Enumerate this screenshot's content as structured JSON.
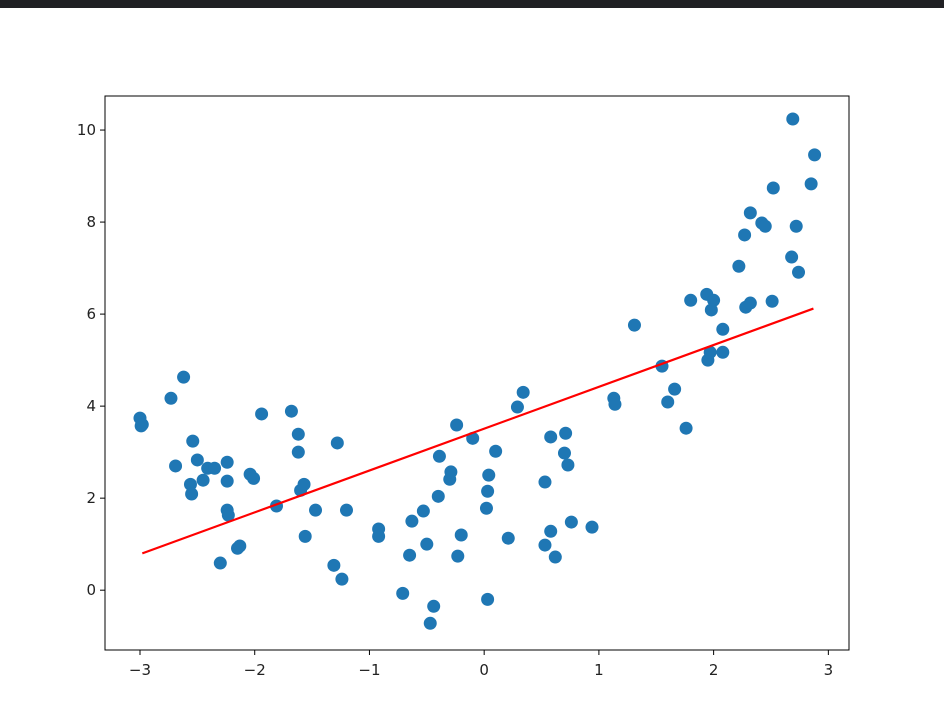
{
  "chart_data": {
    "type": "scatter",
    "xlim": [
      -3.305,
      3.18
    ],
    "ylim": [
      -1.3,
      10.74
    ],
    "xticks": [
      {
        "value": -3,
        "label": "−3"
      },
      {
        "value": -2,
        "label": "−2"
      },
      {
        "value": -1,
        "label": "−1"
      },
      0,
      1,
      2,
      3
    ],
    "yticks": [
      0,
      2,
      4,
      6,
      8,
      10
    ],
    "series": [
      {
        "type": "scatter",
        "color": "#1f77b4",
        "x": [
          -3.0,
          -2.99,
          -2.98,
          -2.73,
          -2.62,
          -2.69,
          -2.54,
          -2.56,
          -2.55,
          -2.5,
          -2.45,
          -2.41,
          -2.35,
          -2.3,
          -2.24,
          -2.24,
          -2.24,
          -2.23,
          -2.15,
          -2.13,
          -2.04,
          -2.01,
          -1.94,
          -1.81,
          -1.68,
          -1.62,
          -1.62,
          -1.6,
          -1.57,
          -1.56,
          -1.47,
          -1.28,
          -1.31,
          -1.24,
          -1.2,
          -0.92,
          -0.92,
          -0.71,
          -0.65,
          -0.63,
          -0.53,
          -0.5,
          -0.47,
          -0.44,
          -0.4,
          -0.39,
          -0.3,
          -0.29,
          -0.24,
          -0.23,
          -0.2,
          -0.1,
          0.02,
          0.03,
          0.03,
          0.04,
          0.1,
          0.21,
          0.29,
          0.34,
          0.53,
          0.53,
          0.58,
          0.58,
          0.62,
          0.7,
          0.71,
          0.73,
          0.76,
          0.94,
          1.13,
          1.14,
          1.31,
          1.55,
          1.6,
          1.66,
          1.76,
          1.8,
          1.94,
          2.0,
          1.98,
          1.95,
          1.97,
          2.08,
          2.08,
          2.22,
          2.27,
          2.28,
          2.32,
          2.32,
          2.42,
          2.45,
          2.51,
          2.52,
          2.68,
          2.69,
          2.72,
          2.74,
          2.85,
          2.88
        ],
        "values": [
          3.74,
          3.57,
          3.6,
          4.17,
          4.63,
          2.7,
          3.24,
          2.3,
          2.09,
          2.83,
          2.39,
          2.65,
          2.65,
          0.59,
          2.78,
          2.37,
          1.74,
          1.63,
          0.91,
          0.96,
          2.52,
          2.43,
          3.83,
          1.83,
          3.89,
          3.39,
          3.0,
          2.17,
          2.3,
          1.17,
          1.74,
          3.2,
          0.54,
          0.24,
          1.74,
          1.33,
          1.17,
          -0.07,
          0.76,
          1.5,
          1.72,
          1.0,
          -0.72,
          -0.35,
          2.04,
          2.91,
          2.41,
          2.57,
          3.59,
          0.74,
          1.2,
          3.3,
          1.78,
          -0.2,
          2.15,
          2.5,
          3.02,
          1.13,
          3.98,
          4.3,
          2.35,
          0.98,
          3.33,
          1.28,
          0.72,
          2.98,
          3.41,
          2.72,
          1.48,
          1.37,
          4.17,
          4.04,
          5.76,
          4.87,
          4.09,
          4.37,
          3.52,
          6.3,
          6.43,
          6.3,
          6.09,
          5.0,
          5.17,
          5.17,
          5.67,
          7.04,
          7.72,
          6.15,
          6.24,
          8.2,
          7.98,
          7.91,
          6.28,
          8.74,
          7.24,
          10.24,
          7.91,
          6.91,
          8.83,
          9.46
        ]
      },
      {
        "type": "line",
        "color": "#ff0000",
        "x": [
          -2.98,
          2.87
        ],
        "values": [
          0.8,
          6.12
        ]
      }
    ]
  }
}
